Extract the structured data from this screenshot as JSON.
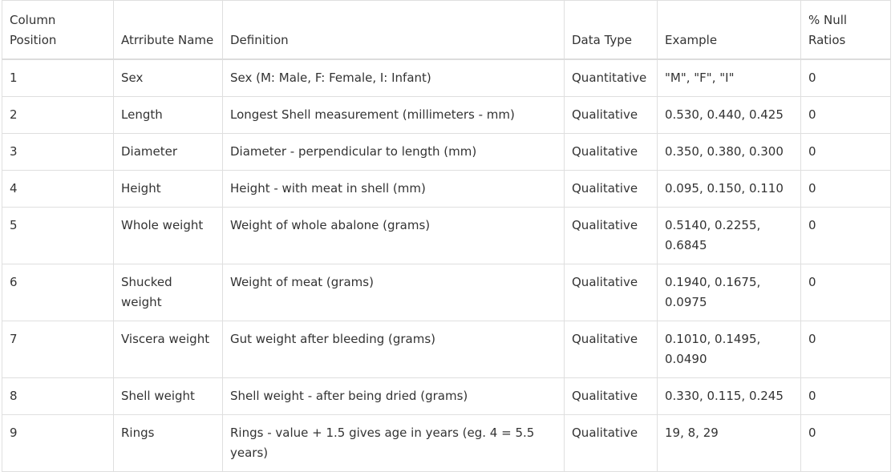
{
  "table": {
    "headers": [
      "Column Position",
      "Atrribute Name",
      "Definition",
      "Data Type",
      "Example",
      "% Null Ratios"
    ],
    "rows": [
      [
        "1",
        "Sex",
        "Sex (M: Male, F: Female, I: Infant)",
        "Quantitative",
        "\"M\", \"F\", \"I\"",
        "0"
      ],
      [
        "2",
        "Length",
        "Longest Shell measurement (millimeters - mm)",
        "Qualitative",
        "0.530, 0.440, 0.425",
        "0"
      ],
      [
        "3",
        "Diameter",
        "Diameter - perpendicular to length (mm)",
        "Qualitative",
        "0.350, 0.380, 0.300",
        "0"
      ],
      [
        "4",
        "Height",
        "Height - with meat in shell (mm)",
        "Qualitative",
        "0.095, 0.150, 0.110",
        "0"
      ],
      [
        "5",
        "Whole weight",
        "Weight of whole abalone (grams)",
        "Qualitative",
        "0.5140, 0.2255, 0.6845",
        "0"
      ],
      [
        "6",
        "Shucked weight",
        "Weight of meat (grams)",
        "Qualitative",
        "0.1940, 0.1675, 0.0975",
        "0"
      ],
      [
        "7",
        "Viscera weight",
        "Gut weight after bleeding (grams)",
        "Qualitative",
        "0.1010, 0.1495, 0.0490",
        "0"
      ],
      [
        "8",
        "Shell weight",
        "Shell weight - after being dried (grams)",
        "Qualitative",
        "0.330, 0.115, 0.245",
        "0"
      ],
      [
        "9",
        "Rings",
        "Rings - value + 1.5 gives age in years (eg. 4 = 5.5 years)",
        "Qualitative",
        "19, 8, 29",
        "0"
      ]
    ]
  }
}
